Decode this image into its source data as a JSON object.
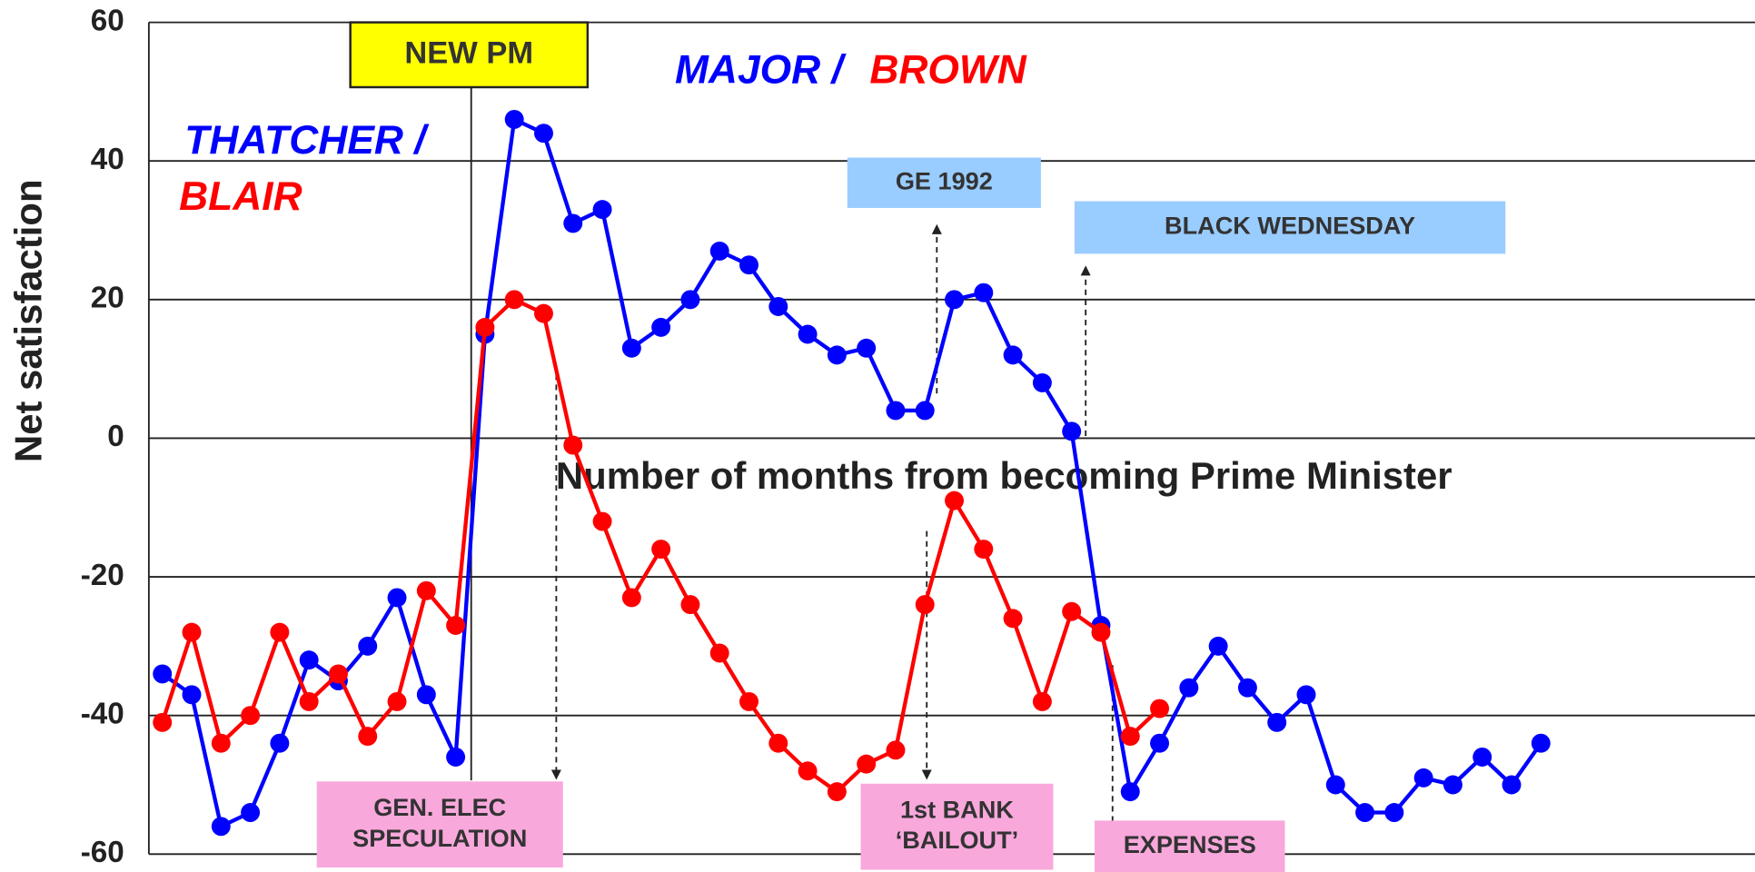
{
  "chart_data": {
    "type": "line",
    "ylabel": "Net satisfaction",
    "xlabel": "Number of months from becoming Prime Minister",
    "x": [
      0,
      1,
      2,
      3,
      4,
      5,
      6,
      7,
      8,
      9,
      10,
      11,
      12,
      13,
      14,
      15,
      16,
      17,
      18,
      19,
      20,
      21,
      22,
      23,
      24,
      25,
      26,
      27,
      28,
      29,
      30,
      31,
      32,
      33,
      34,
      35,
      36,
      37,
      38,
      39,
      40,
      41,
      42,
      43,
      44,
      45,
      46,
      47
    ],
    "series": [
      {
        "color": "#0000ff",
        "values": [
          -34,
          -37,
          -56,
          -54,
          -44,
          -32,
          -35,
          -30,
          -23,
          -37,
          -46,
          15,
          46,
          44,
          31,
          33,
          13,
          16,
          20,
          27,
          25,
          19,
          15,
          12,
          13,
          4,
          4,
          20,
          21,
          12,
          8,
          1,
          -27,
          -51,
          -44,
          -36,
          -30,
          -36,
          -41,
          -37,
          -50,
          -54,
          -54,
          -49,
          -50,
          -46,
          -50,
          -44
        ]
      },
      {
        "color": "#ff0000",
        "values": [
          -41,
          -28,
          -44,
          -40,
          -28,
          -38,
          -34,
          -43,
          -38,
          -22,
          -27,
          16,
          20,
          18,
          -1,
          -12,
          -23,
          -16,
          -24,
          -31,
          -38,
          -44,
          -48,
          -51,
          -47,
          -45,
          -24,
          -9,
          -16,
          -26,
          -38,
          -25,
          -28,
          -43,
          -39,
          null,
          null,
          null,
          null,
          null,
          null,
          null,
          null,
          null,
          null,
          null,
          null,
          null
        ]
      }
    ],
    "xlim": [
      -0.46,
      54.3
    ],
    "ylim": [
      -60,
      60
    ],
    "yticks": [
      -60,
      -40,
      -20,
      0,
      20,
      40,
      60
    ],
    "grid": true,
    "labels": [
      {
        "text": "THATCHER /",
        "color": "#0000ff"
      },
      {
        "text": "BLAIR",
        "color": "#ff0000"
      },
      {
        "text": "MAJOR /",
        "color": "#0000ff"
      },
      {
        "text": "BROWN",
        "color": "#ff0000"
      }
    ],
    "annotations": [
      {
        "text": [
          "NEW PM"
        ],
        "color": "#ffff00"
      },
      {
        "text": [
          "GE 1992"
        ],
        "color": "#99ccff"
      },
      {
        "text": [
          "BLACK WEDNESDAY"
        ],
        "color": "#99ccff"
      },
      {
        "text": [
          "GEN. ELEC",
          "SPECULATION"
        ],
        "color": "#f9a8dc"
      },
      {
        "text": [
          "1st BANK",
          "‘BAILOUT’"
        ],
        "color": "#f9a8dc"
      },
      {
        "text": [
          "EXPENSES"
        ],
        "color": "#f9a8dc"
      }
    ]
  }
}
